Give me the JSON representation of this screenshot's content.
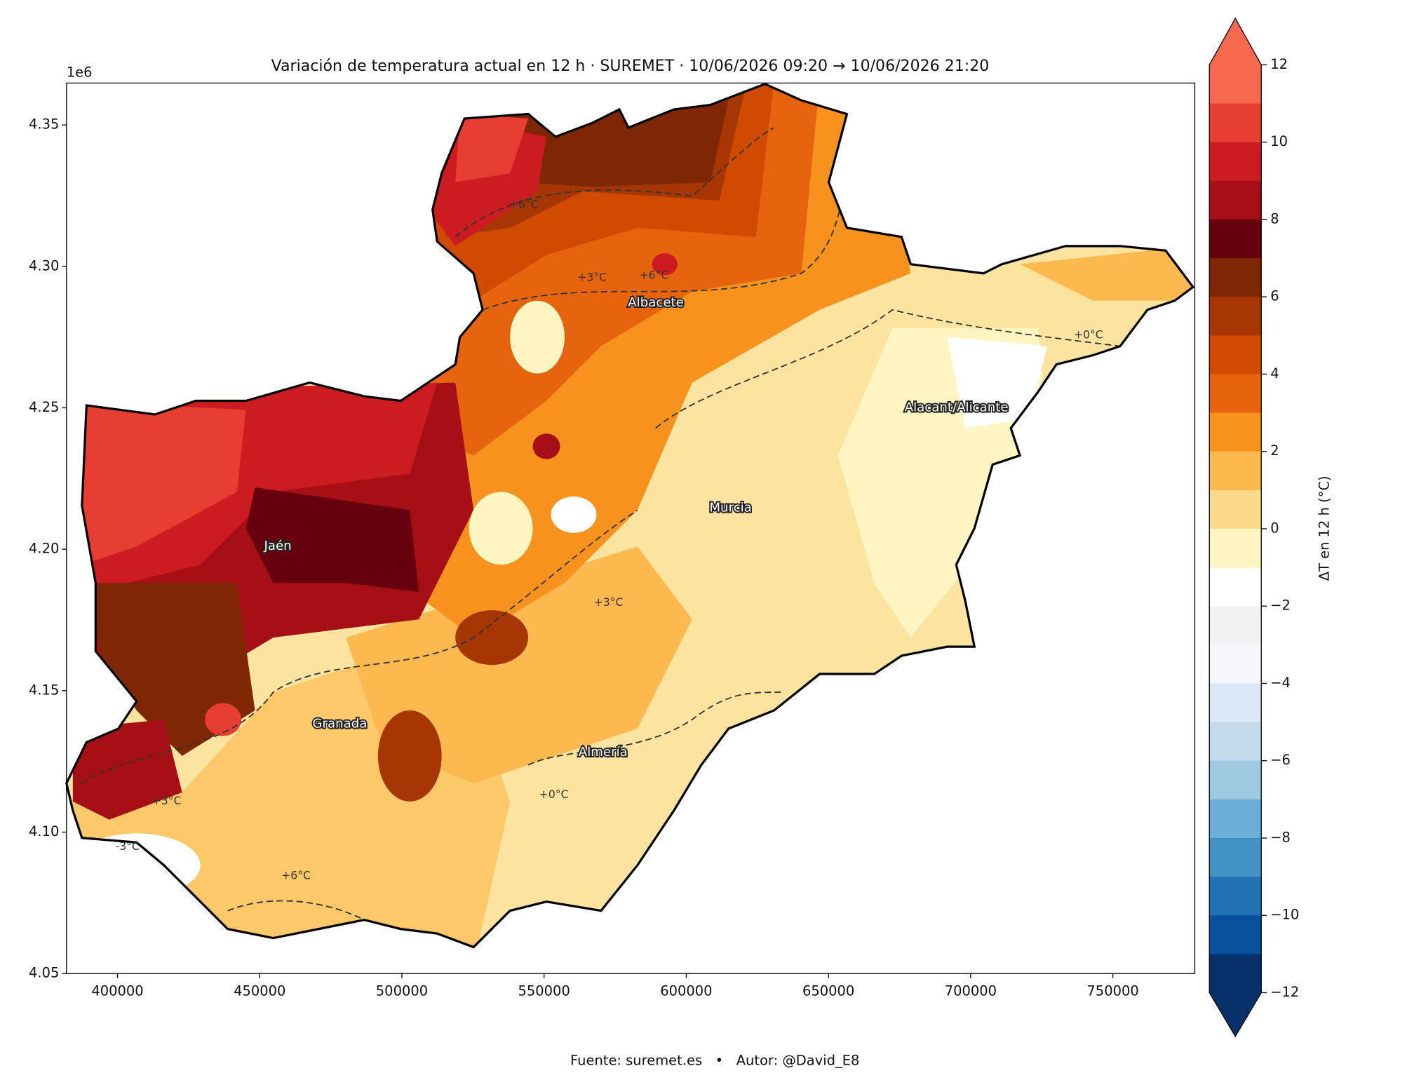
{
  "chart_data": {
    "type": "contour-map",
    "title": "Variación de temperatura actual en 12 h · SUREMET · 10/06/2026 09:20 → 10/06/2026 21:20",
    "footer": "Fuente: suremet.es   •   Autor: @David_E8",
    "y_offset_label": "1e6",
    "xlim": [
      382060,
      778830
    ],
    "ylim": [
      4.05,
      4.3648
    ],
    "xticks": [
      400000,
      450000,
      500000,
      550000,
      600000,
      650000,
      700000,
      750000
    ],
    "yticks": [
      4.05,
      {
        "value": 4.1,
        "label": "4.10"
      },
      4.15,
      {
        "value": 4.2,
        "label": "4.20"
      },
      4.25,
      {
        "value": 4.3,
        "label": "4.30"
      },
      4.35
    ],
    "colorbar": {
      "label": "ΔT en 12 h (°C)",
      "lim": [
        -12,
        12
      ],
      "ticks": [
        {
          "value": -12,
          "label": "−12"
        },
        {
          "value": -10,
          "label": "−10"
        },
        {
          "value": -8,
          "label": "−8"
        },
        {
          "value": -6,
          "label": "−6"
        },
        {
          "value": -4,
          "label": "−4"
        },
        {
          "value": -2,
          "label": "−2"
        },
        0,
        2,
        4,
        6,
        8,
        10,
        12
      ],
      "colors": [
        "#f7694f",
        "#e83e31",
        "#cc1c21",
        "#a50f15",
        "#67000d",
        "#7f2704",
        "#a63603",
        "#d04a02",
        "#e6640e",
        "#f7921f",
        "#fdb94f",
        "#fdd98c",
        "#fff5c0",
        "#ffffff",
        "#f2f2f2",
        "#f4f8fd",
        "#dbe7f4",
        "#c5d9ed",
        "#9ecae1",
        "#6baed6",
        "#4292c6",
        "#2171b5",
        "#08519c",
        "#08306b"
      ]
    },
    "cities": [
      {
        "name": "Albacete",
        "x": 589300,
        "y": 4.287
      },
      {
        "name": "Jaén",
        "x": 456380,
        "y": 4.201
      },
      {
        "name": "Murcia",
        "x": 615580,
        "y": 4.2145
      },
      {
        "name": "Alacant/Alicante",
        "x": 695000,
        "y": 4.25
      },
      {
        "name": "Granada",
        "x": 478160,
        "y": 4.1382
      },
      {
        "name": "Almería",
        "x": 570740,
        "y": 4.1282
      }
    ],
    "contour_labels": [
      {
        "text": "+6°C",
        "x": 542860,
        "y": 4.3218
      },
      {
        "text": "+6°C",
        "x": 588660,
        "y": 4.2967
      },
      {
        "text": "+3°C",
        "x": 566880,
        "y": 4.296
      },
      {
        "text": "+0°C",
        "x": 741440,
        "y": 4.2757
      },
      {
        "text": "+3°C",
        "x": 572650,
        "y": 4.1811
      },
      {
        "text": "+0°C",
        "x": 553430,
        "y": 4.1131
      },
      {
        "text": "+3°C",
        "x": 417300,
        "y": 4.1109
      },
      {
        "text": "-3°C",
        "x": 403520,
        "y": 4.0948
      },
      {
        "text": "+6°C",
        "x": 462780,
        "y": 4.0845
      }
    ]
  }
}
